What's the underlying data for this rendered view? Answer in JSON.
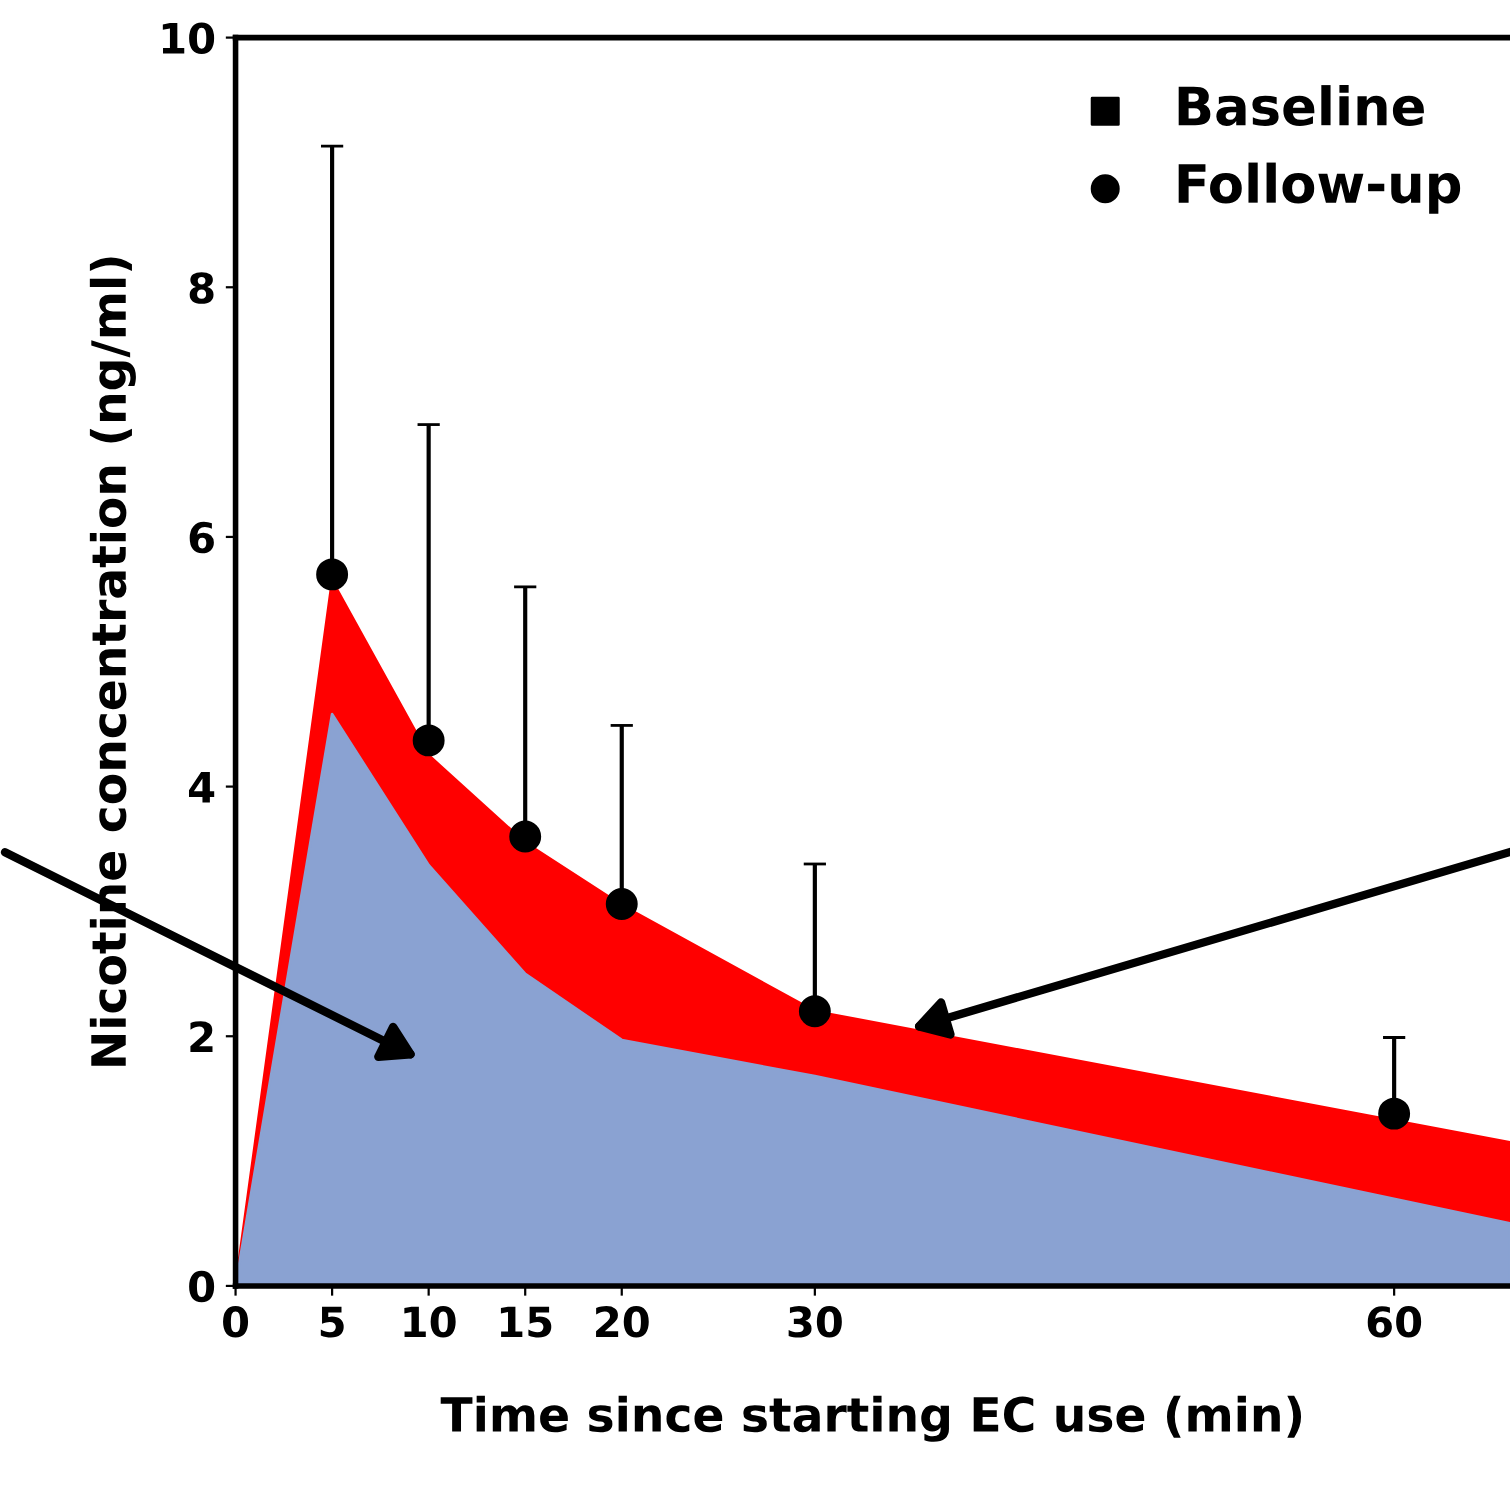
{
  "chart_data": {
    "type": "area",
    "xlabel": "Time since starting EC use (min)",
    "ylabel": "Nicotine concentration (ng/ml)",
    "xlim": [
      0,
      66
    ],
    "xticks": [
      0,
      5,
      10,
      15,
      20,
      30,
      60
    ],
    "ylim": [
      0,
      10
    ],
    "yticks": [
      0,
      2,
      4,
      6,
      8,
      10
    ],
    "grid": false,
    "legend": "top right",
    "series": [
      {
        "color": "#ff0000",
        "x": [
          0,
          5,
          10,
          15,
          20,
          30,
          66
        ],
        "values": [
          0,
          5.65,
          4.25,
          3.55,
          3.05,
          2.2,
          1.15
        ]
      },
      {
        "color": "#8aa2d2",
        "x": [
          0,
          5,
          10,
          15,
          20,
          30,
          66
        ],
        "values": [
          0,
          4.58,
          3.37,
          2.5,
          1.97,
          1.68,
          0.5
        ]
      },
      {
        "name": "Baseline",
        "type": "scatter",
        "color": "#000000",
        "marker": "square"
      },
      {
        "name": "Follow-up",
        "type": "scatter",
        "color": "#000000",
        "marker": "circle",
        "x": [
          5,
          10,
          15,
          20,
          30,
          60
        ],
        "values": [
          5.7,
          4.37,
          3.6,
          3.06,
          2.2,
          1.38
        ],
        "errors": [
          [
            5.7,
            9.13
          ],
          [
            4.37,
            6.9
          ],
          [
            3.6,
            5.6
          ],
          [
            3.06,
            4.49
          ],
          [
            2.2,
            3.38
          ],
          [
            1.38,
            1.99
          ]
        ]
      }
    ]
  }
}
